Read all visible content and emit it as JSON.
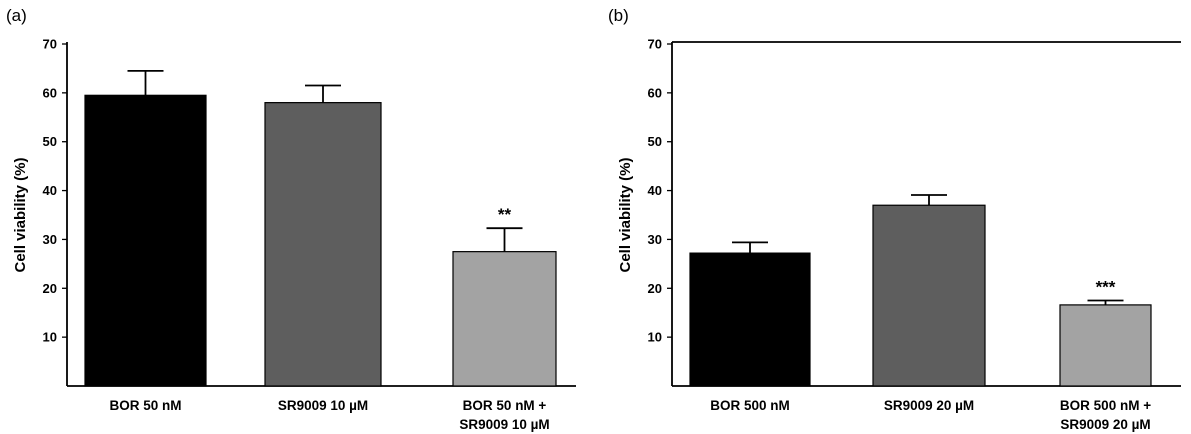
{
  "chart_data": [
    {
      "type": "bar",
      "panel_label": "(a)",
      "ylabel": "Cell viability (%)",
      "ylim": [
        0,
        70
      ],
      "yticks": [
        10,
        20,
        30,
        40,
        50,
        60,
        70
      ],
      "grid": false,
      "categories": [
        [
          "BOR 50 nM"
        ],
        [
          "SR9009 10 µM"
        ],
        [
          "BOR 50 nM +",
          "SR9009 10 µM"
        ]
      ],
      "values": [
        59.5,
        58.0,
        27.5
      ],
      "errors": [
        5.0,
        3.5,
        4.8
      ],
      "colors": [
        "#000000",
        "#5e5e5e",
        "#a3a3a3"
      ],
      "annotations": [
        "",
        "",
        "**"
      ]
    },
    {
      "type": "bar",
      "panel_label": "(b)",
      "ylabel": "Cell viability (%)",
      "ylim": [
        0,
        70
      ],
      "yticks": [
        10,
        20,
        30,
        40,
        50,
        60,
        70
      ],
      "grid": false,
      "categories": [
        [
          "BOR 500 nM"
        ],
        [
          "SR9009 20 µM"
        ],
        [
          "BOR 500 nM +",
          "SR9009 20 µM"
        ]
      ],
      "values": [
        27.2,
        37.0,
        16.6
      ],
      "errors": [
        2.2,
        2.1,
        0.9
      ],
      "colors": [
        "#000000",
        "#5e5e5e",
        "#a3a3a3"
      ],
      "annotations": [
        "",
        "",
        "***"
      ]
    }
  ]
}
